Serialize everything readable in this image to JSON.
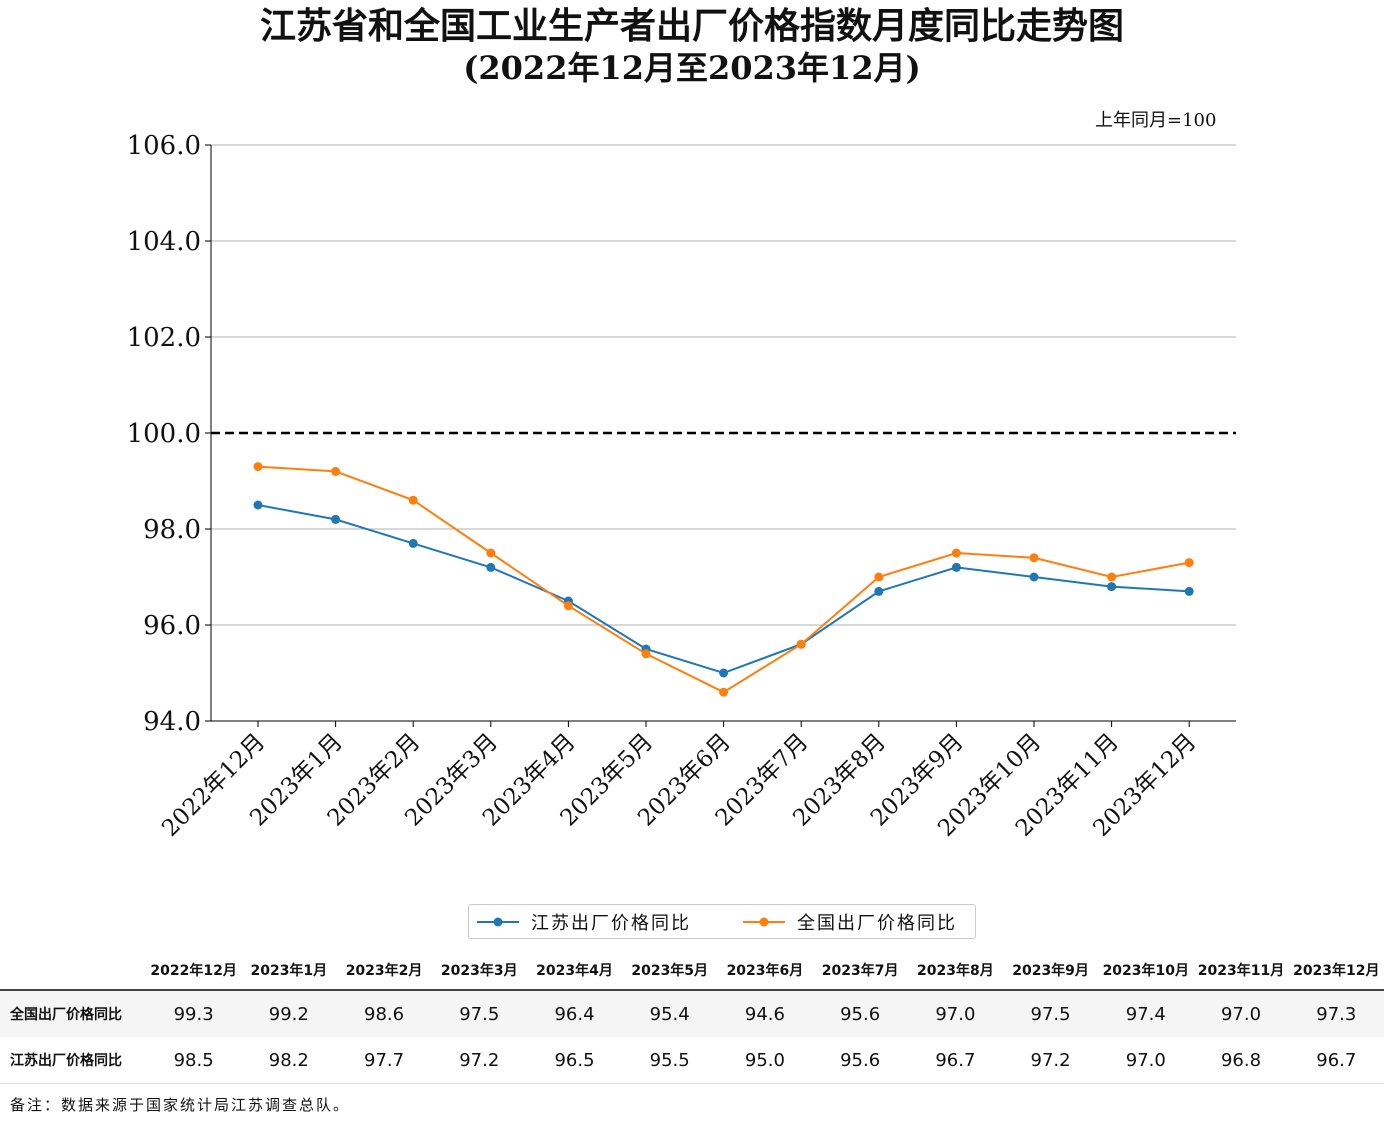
{
  "chart_data": {
    "type": "line",
    "title": "江苏省和全国工业生产者出厂价格指数月度同比走势图",
    "subtitle": "(2022年12月至2023年12月)",
    "unit_note": "上年同月=100",
    "categories": [
      "2022年12月",
      "2023年1月",
      "2023年2月",
      "2023年3月",
      "2023年4月",
      "2023年5月",
      "2023年6月",
      "2023年7月",
      "2023年8月",
      "2023年9月",
      "2023年10月",
      "2023年11月",
      "2023年12月"
    ],
    "series": [
      {
        "name": "江苏出厂价格同比",
        "color": "#1f77b4",
        "values": [
          98.5,
          98.2,
          97.7,
          97.2,
          96.5,
          95.5,
          95.0,
          95.6,
          96.7,
          97.2,
          97.0,
          96.8,
          96.7
        ]
      },
      {
        "name": "全国出厂价格同比",
        "color": "#ff7f0e",
        "values": [
          99.3,
          99.2,
          98.6,
          97.5,
          96.4,
          95.4,
          94.6,
          95.6,
          97.0,
          97.5,
          97.4,
          97.0,
          97.3
        ]
      }
    ],
    "ylim": [
      94.0,
      106.0
    ],
    "yticks": [
      "94.0",
      "96.0",
      "98.0",
      "100.0",
      "102.0",
      "104.0",
      "106.0"
    ],
    "reference_line": 100.0,
    "grid": "horizontal",
    "legend_position": "bottom"
  },
  "table": {
    "headers": [
      "2022年12月",
      "2023年1月",
      "2023年2月",
      "2023年3月",
      "2023年4月",
      "2023年5月",
      "2023年6月",
      "2023年7月",
      "2023年8月",
      "2023年9月",
      "2023年10月",
      "2023年11月",
      "2023年12月"
    ],
    "rows": [
      {
        "label": "全国出厂价格同比",
        "values": [
          "99.3",
          "99.2",
          "98.6",
          "97.5",
          "96.4",
          "95.4",
          "94.6",
          "95.6",
          "97.0",
          "97.5",
          "97.4",
          "97.0",
          "97.3"
        ]
      },
      {
        "label": "江苏出厂价格同比",
        "values": [
          "98.5",
          "98.2",
          "97.7",
          "97.2",
          "96.5",
          "95.5",
          "95.0",
          "95.6",
          "96.7",
          "97.2",
          "97.0",
          "96.8",
          "96.7"
        ]
      }
    ]
  },
  "footnote": "备注：数据来源于国家统计局江苏调查总队。"
}
